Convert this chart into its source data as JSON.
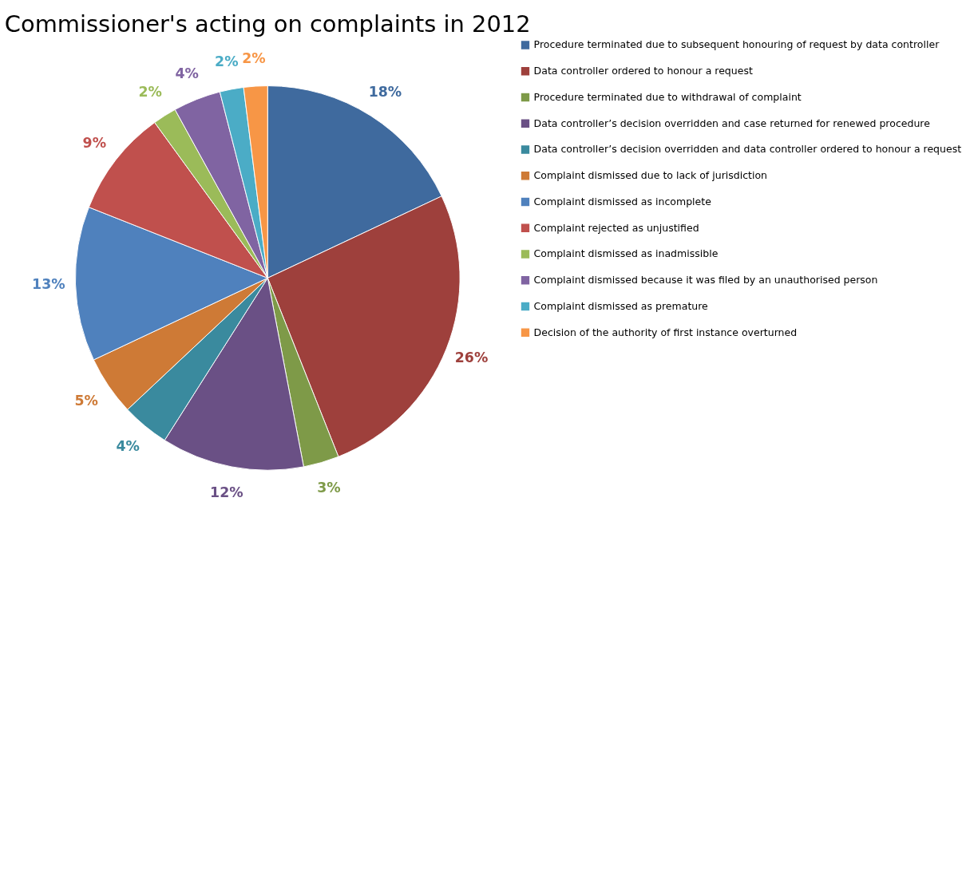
{
  "chart_data": {
    "type": "pie",
    "title": "Commissioner's acting on complaints in 2012",
    "categories": [
      "Procedure terminated due to subsequent honouring of request by data controller",
      "Data controller ordered to honour a request",
      "Procedure terminated due to withdrawal of complaint",
      "Data controller’s decision overridden and case returned for renewed procedure",
      "Data controller’s decision overridden and data controller ordered to honour a request",
      "Complaint dismissed due to lack of jurisdiction",
      "Complaint dismissed as incomplete",
      "Complaint rejected as unjustified",
      "Complaint dismissed as inadmissible",
      "Complaint dismissed because it was filed by an unauthorised person",
      "Complaint dismissed as premature",
      "Decision of the authority of first instance overturned"
    ],
    "values": [
      18,
      26,
      3,
      12,
      4,
      5,
      13,
      9,
      2,
      4,
      2,
      2
    ],
    "value_labels": [
      "18%",
      "26%",
      "3%",
      "12%",
      "4%",
      "5%",
      "13%",
      "9%",
      "2%",
      "4%",
      "2%",
      "2%"
    ],
    "colors": [
      "#3f6a9e",
      "#9e403c",
      "#7e9a48",
      "#6a5085",
      "#3a8a9e",
      "#ce7a36",
      "#4f81bd",
      "#c0504d",
      "#9bbb59",
      "#8064a2",
      "#4bacc6",
      "#f79646"
    ],
    "legend": "right"
  }
}
